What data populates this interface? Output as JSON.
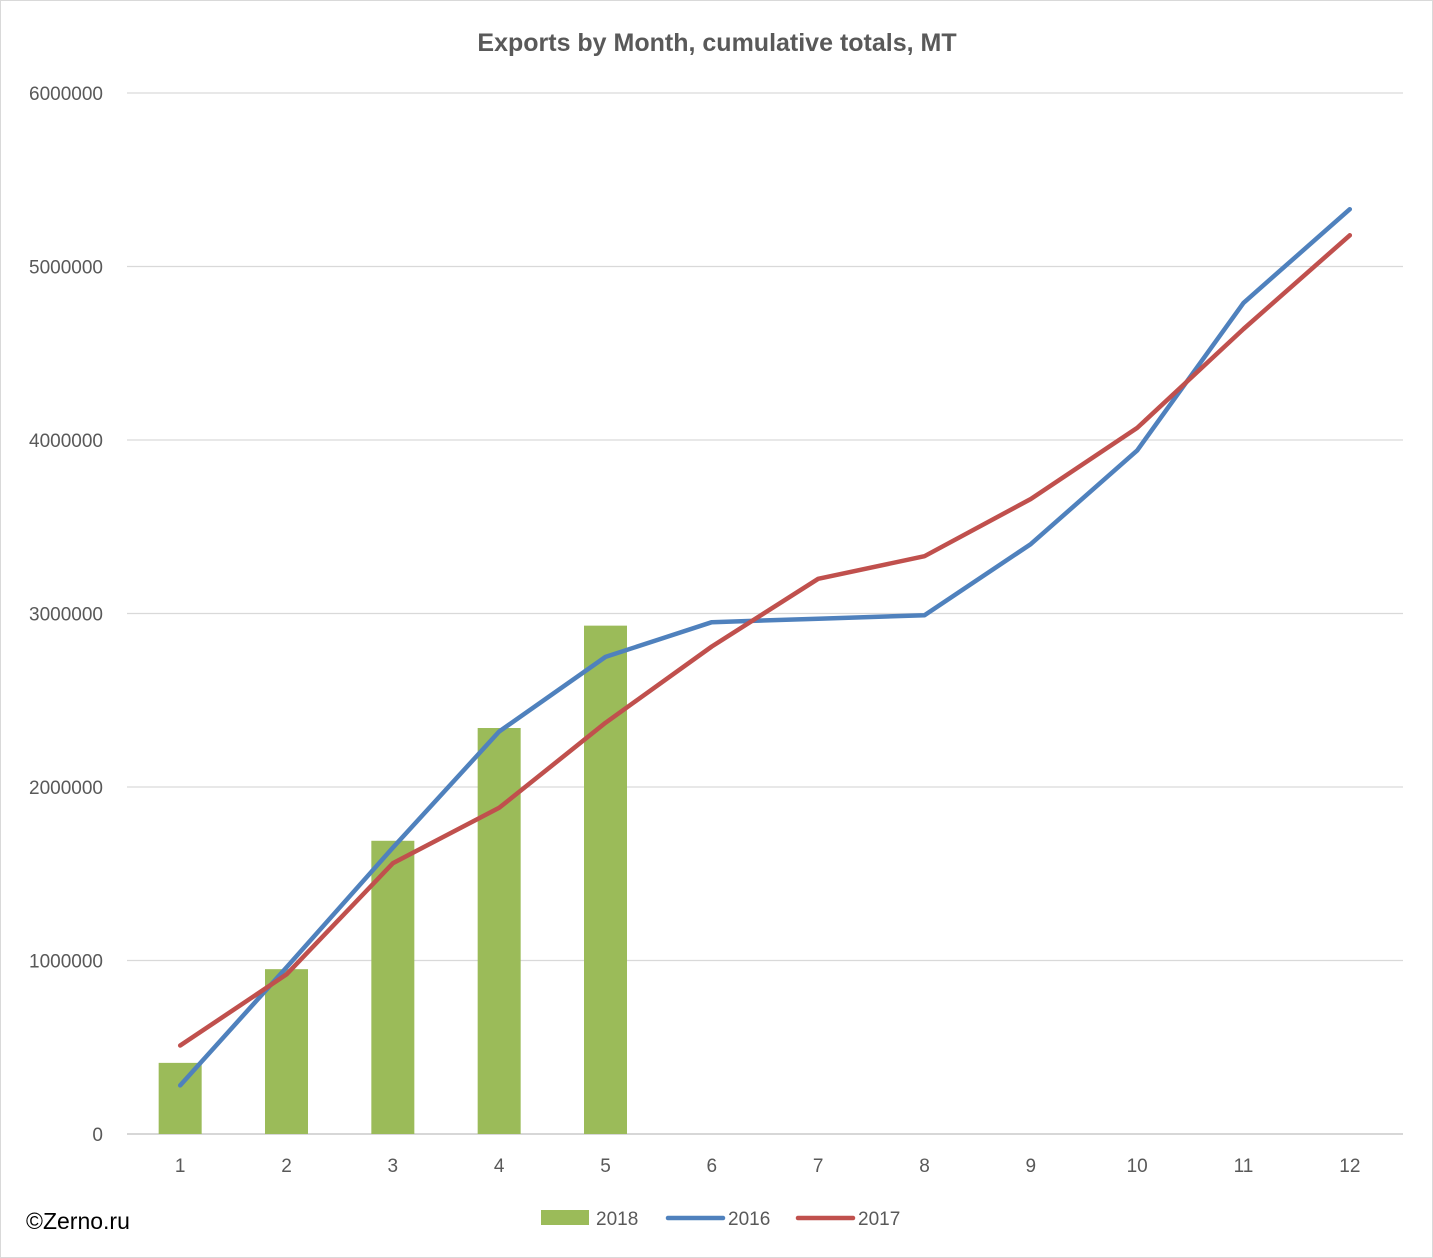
{
  "chart_data": {
    "type": "bar+line",
    "title": "Exports by Month, cumulative totals, MT",
    "xlabel": "",
    "ylabel": "",
    "categories": [
      "1",
      "2",
      "3",
      "4",
      "5",
      "6",
      "7",
      "8",
      "9",
      "10",
      "11",
      "12"
    ],
    "ylim": [
      0,
      6000000
    ],
    "yticks": [
      "0",
      "1000000",
      "2000000",
      "3000000",
      "4000000",
      "5000000",
      "6000000"
    ],
    "grid": true,
    "legend": "bottom",
    "series": [
      {
        "name": "2018",
        "kind": "bar",
        "color": "#9bbb59",
        "values": [
          410000,
          950000,
          1690000,
          2340000,
          2930000,
          null,
          null,
          null,
          null,
          null,
          null,
          null
        ]
      },
      {
        "name": "2016",
        "kind": "line",
        "color": "#4f81bd",
        "values": [
          280000,
          960000,
          1650000,
          2320000,
          2750000,
          2950000,
          2970000,
          2990000,
          3400000,
          3940000,
          4790000,
          5330000
        ]
      },
      {
        "name": "2017",
        "kind": "line",
        "color": "#c0504d",
        "values": [
          510000,
          920000,
          1560000,
          1880000,
          2370000,
          2810000,
          3200000,
          3330000,
          3660000,
          4070000,
          4640000,
          5180000
        ]
      }
    ]
  },
  "watermark": "©Zerno.ru"
}
